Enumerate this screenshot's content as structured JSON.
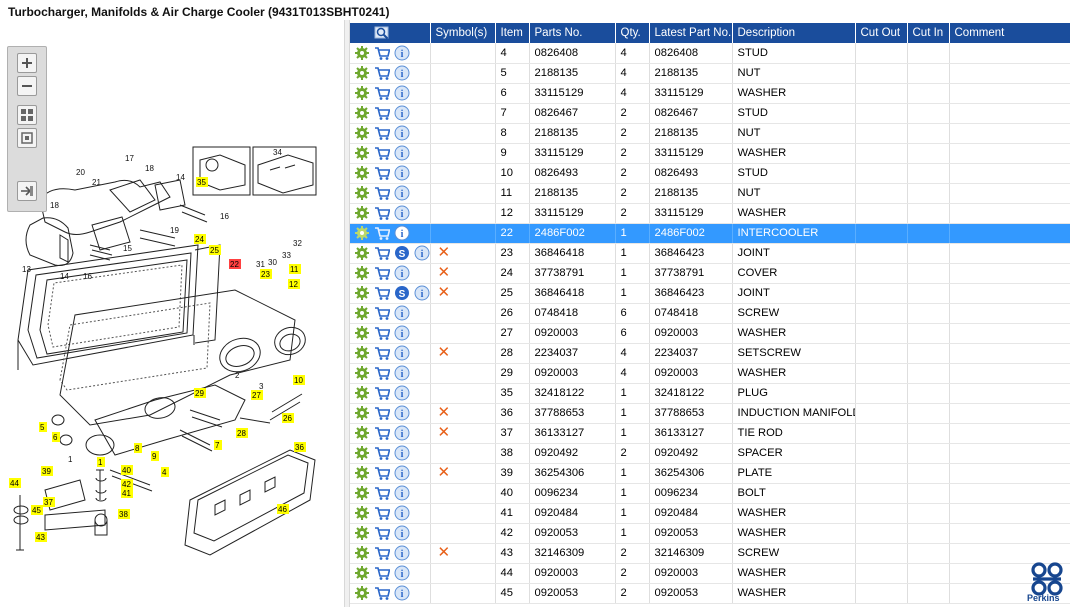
{
  "title": "Turbocharger, Manifolds & Air Charge Cooler (9431T013SBHT0241)",
  "toolbar": {
    "buttons": [
      "zoom-in-icon",
      "zoom-out-icon",
      "fit-all-icon",
      "fit-page-icon",
      "export-icon"
    ]
  },
  "table": {
    "columns": [
      "",
      "Symbol(s)",
      "Item",
      "Parts No.",
      "Qty.",
      "Latest Part No.",
      "Description",
      "Cut Out",
      "Cut In",
      "Comment"
    ],
    "rows": [
      {
        "item": "4",
        "part": "0826408",
        "qty": "4",
        "latest": "0826408",
        "desc": "STUD",
        "s": false,
        "x": false
      },
      {
        "item": "5",
        "part": "2188135",
        "qty": "4",
        "latest": "2188135",
        "desc": "NUT",
        "s": false,
        "x": false
      },
      {
        "item": "6",
        "part": "33115129",
        "qty": "4",
        "latest": "33115129",
        "desc": "WASHER",
        "s": false,
        "x": false
      },
      {
        "item": "7",
        "part": "0826467",
        "qty": "2",
        "latest": "0826467",
        "desc": "STUD",
        "s": false,
        "x": false
      },
      {
        "item": "8",
        "part": "2188135",
        "qty": "2",
        "latest": "2188135",
        "desc": "NUT",
        "s": false,
        "x": false
      },
      {
        "item": "9",
        "part": "33115129",
        "qty": "2",
        "latest": "33115129",
        "desc": "WASHER",
        "s": false,
        "x": false
      },
      {
        "item": "10",
        "part": "0826493",
        "qty": "2",
        "latest": "0826493",
        "desc": "STUD",
        "s": false,
        "x": false
      },
      {
        "item": "11",
        "part": "2188135",
        "qty": "2",
        "latest": "2188135",
        "desc": "NUT",
        "s": false,
        "x": false
      },
      {
        "item": "12",
        "part": "33115129",
        "qty": "2",
        "latest": "33115129",
        "desc": "WASHER",
        "s": false,
        "x": false
      },
      {
        "item": "22",
        "part": "2486F002",
        "qty": "1",
        "latest": "2486F002",
        "desc": "INTERCOOLER",
        "s": false,
        "x": false,
        "selected": true
      },
      {
        "item": "23",
        "part": "36846418",
        "qty": "1",
        "latest": "36846423",
        "desc": "JOINT",
        "s": true,
        "x": true
      },
      {
        "item": "24",
        "part": "37738791",
        "qty": "1",
        "latest": "37738791",
        "desc": "COVER",
        "s": false,
        "x": true
      },
      {
        "item": "25",
        "part": "36846418",
        "qty": "1",
        "latest": "36846423",
        "desc": "JOINT",
        "s": true,
        "x": true
      },
      {
        "item": "26",
        "part": "0748418",
        "qty": "6",
        "latest": "0748418",
        "desc": "SCREW",
        "s": false,
        "x": false
      },
      {
        "item": "27",
        "part": "0920003",
        "qty": "6",
        "latest": "0920003",
        "desc": "WASHER",
        "s": false,
        "x": false
      },
      {
        "item": "28",
        "part": "2234037",
        "qty": "4",
        "latest": "2234037",
        "desc": "SETSCREW",
        "s": false,
        "x": true
      },
      {
        "item": "29",
        "part": "0920003",
        "qty": "4",
        "latest": "0920003",
        "desc": "WASHER",
        "s": false,
        "x": false
      },
      {
        "item": "35",
        "part": "32418122",
        "qty": "1",
        "latest": "32418122",
        "desc": "PLUG",
        "s": false,
        "x": false
      },
      {
        "item": "36",
        "part": "37788653",
        "qty": "1",
        "latest": "37788653",
        "desc": "INDUCTION MANIFOLD",
        "s": false,
        "x": true
      },
      {
        "item": "37",
        "part": "36133127",
        "qty": "1",
        "latest": "36133127",
        "desc": "TIE ROD",
        "s": false,
        "x": true
      },
      {
        "item": "38",
        "part": "0920492",
        "qty": "2",
        "latest": "0920492",
        "desc": "SPACER",
        "s": false,
        "x": false
      },
      {
        "item": "39",
        "part": "36254306",
        "qty": "1",
        "latest": "36254306",
        "desc": "PLATE",
        "s": false,
        "x": true
      },
      {
        "item": "40",
        "part": "0096234",
        "qty": "1",
        "latest": "0096234",
        "desc": "BOLT",
        "s": false,
        "x": false
      },
      {
        "item": "41",
        "part": "0920484",
        "qty": "1",
        "latest": "0920484",
        "desc": "WASHER",
        "s": false,
        "x": false
      },
      {
        "item": "42",
        "part": "0920053",
        "qty": "1",
        "latest": "0920053",
        "desc": "WASHER",
        "s": false,
        "x": false
      },
      {
        "item": "43",
        "part": "32146309",
        "qty": "2",
        "latest": "32146309",
        "desc": "SCREW",
        "s": false,
        "x": true
      },
      {
        "item": "44",
        "part": "0920003",
        "qty": "2",
        "latest": "0920003",
        "desc": "WASHER",
        "s": false,
        "x": false
      },
      {
        "item": "45",
        "part": "0920053",
        "qty": "2",
        "latest": "0920053",
        "desc": "WASHER",
        "s": false,
        "x": false
      }
    ]
  },
  "diagram": {
    "callouts_highlighted": [
      "35",
      "24",
      "25",
      "23",
      "11",
      "12",
      "10",
      "29",
      "27",
      "28",
      "26",
      "5",
      "6",
      "8",
      "9",
      "7",
      "4",
      "1",
      "36",
      "46",
      "39",
      "40",
      "42",
      "41",
      "38",
      "44",
      "45",
      "37",
      "43"
    ],
    "callout_selected": "22",
    "callouts_plain": [
      "17",
      "18",
      "20",
      "21",
      "14",
      "15",
      "16",
      "13",
      "19",
      "30",
      "31",
      "32",
      "33",
      "34",
      "2",
      "3"
    ]
  },
  "brand": {
    "label": "Perkins",
    "color": "#17468f"
  },
  "colors": {
    "header": "#1a4d9c",
    "selection": "#3399ff",
    "callout": "#ffff00",
    "callout_selected": "#ff4040",
    "symbol_x": "#e8611a"
  }
}
